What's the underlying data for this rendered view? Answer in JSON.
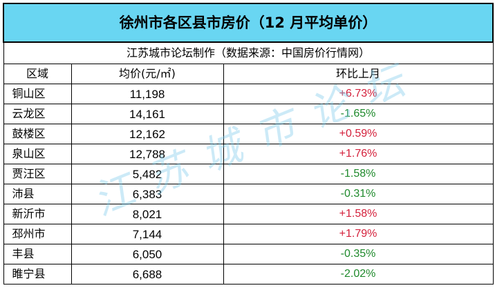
{
  "title": "徐州市各区县市房价（12 月平均单价）",
  "subtitle": "江苏城市论坛制作（数据来源：中国房价行情网）",
  "watermark": "江苏城市论坛",
  "headers": {
    "district": "区域",
    "price": "均价(元/㎡)",
    "change": "环比上月"
  },
  "colors": {
    "title_bg": "#69d6f2",
    "up": "#d41f3a",
    "down": "#1f8a2c"
  },
  "rows": [
    {
      "district": "铜山区",
      "price": "11,198",
      "change": "+6.73%",
      "dir": "up"
    },
    {
      "district": "云龙区",
      "price": "14,161",
      "change": "-1.65%",
      "dir": "down"
    },
    {
      "district": "鼓楼区",
      "price": "12,162",
      "change": "+0.59%",
      "dir": "up"
    },
    {
      "district": "泉山区",
      "price": "12,788",
      "change": "+1.76%",
      "dir": "up"
    },
    {
      "district": "贾汪区",
      "price": "5,482",
      "change": "-1.58%",
      "dir": "down"
    },
    {
      "district": "沛县",
      "price": "6,383",
      "change": "-0.31%",
      "dir": "down"
    },
    {
      "district": "新沂市",
      "price": "8,021",
      "change": "+1.58%",
      "dir": "up"
    },
    {
      "district": "邳州市",
      "price": "7,144",
      "change": "+1.79%",
      "dir": "up"
    },
    {
      "district": "丰县",
      "price": "6,050",
      "change": "-0.35%",
      "dir": "down"
    },
    {
      "district": "睢宁县",
      "price": "6,688",
      "change": "-2.02%",
      "dir": "down"
    }
  ]
}
